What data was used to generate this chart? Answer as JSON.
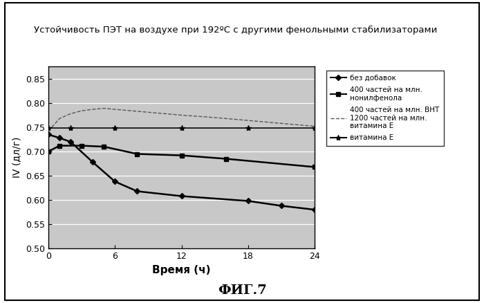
{
  "title": "Устойчивость ПЭТ на воздухе при 192ºC с другими фенольными стабилизаторами",
  "xlabel": "Время (ч)",
  "ylabel": "IV (дл/г)",
  "fig_label": "ФИГ.7",
  "xlim": [
    0,
    24
  ],
  "ylim": [
    0.5,
    0.875
  ],
  "yticks": [
    0.5,
    0.55,
    0.6,
    0.65,
    0.7,
    0.75,
    0.8,
    0.85
  ],
  "xticks": [
    0,
    6,
    12,
    18,
    24
  ],
  "series": [
    {
      "label": "без добавок",
      "x": [
        0,
        1,
        2,
        4,
        6,
        8,
        12,
        18,
        21,
        24
      ],
      "y": [
        0.735,
        0.728,
        0.72,
        0.678,
        0.638,
        0.618,
        0.608,
        0.598,
        0.588,
        0.58
      ],
      "color": "#000000",
      "linestyle": "-",
      "marker": "D",
      "markersize": 4,
      "linewidth": 1.8
    },
    {
      "label": "400 частей на млн.\nнонилфенола",
      "x": [
        0,
        1,
        3,
        5,
        8,
        12,
        16,
        24
      ],
      "y": [
        0.7,
        0.712,
        0.712,
        0.71,
        0.695,
        0.692,
        0.685,
        0.668
      ],
      "color": "#000000",
      "linestyle": "-",
      "marker": "s",
      "markersize": 5,
      "linewidth": 1.8
    },
    {
      "label": "400 частей на млн. ВНТ\n1200 частей на млн.\nвитамина Е",
      "x": [
        0,
        1,
        2,
        3,
        4,
        5,
        6,
        8,
        10,
        12,
        15,
        18,
        21,
        24
      ],
      "y": [
        0.742,
        0.768,
        0.778,
        0.784,
        0.787,
        0.789,
        0.787,
        0.783,
        0.779,
        0.775,
        0.77,
        0.764,
        0.758,
        0.752
      ],
      "color": "#555555",
      "linestyle": "--",
      "marker": null,
      "markersize": 0,
      "linewidth": 1.0
    },
    {
      "label": "витамина Е",
      "x": [
        0,
        2,
        6,
        12,
        18,
        24
      ],
      "y": [
        0.748,
        0.748,
        0.748,
        0.748,
        0.748,
        0.748
      ],
      "color": "#000000",
      "linestyle": "-",
      "marker": "*",
      "markersize": 6,
      "linewidth": 1.2
    }
  ],
  "background_color": "#c8c8c8",
  "outer_bg": "#ffffff",
  "border_color": "#000000",
  "title_fontsize": 9.5,
  "axis_fontsize": 10,
  "tick_fontsize": 9
}
